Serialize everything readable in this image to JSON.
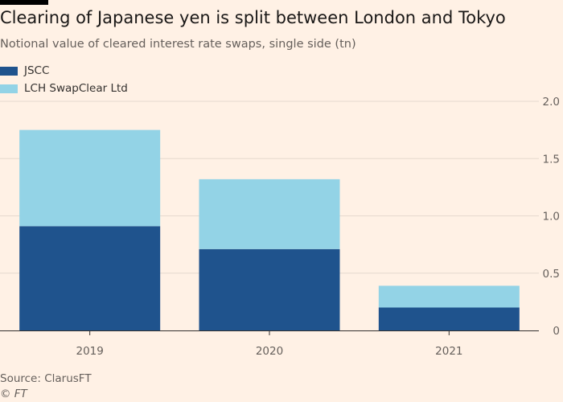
{
  "header": {
    "title": "Clearing of Japanese yen is split between London and Tokyo",
    "subtitle": "Notional value of cleared interest rate swaps, single side (tn)"
  },
  "footer": {
    "source": "Source: ClarusFT",
    "credit": "© FT"
  },
  "colors": {
    "background": "#fff1e5",
    "jscc": "#1f538d",
    "lch": "#93d3e6",
    "gridline": "#e6d9ce",
    "axis": "#33302e",
    "tick_text": "#66605c"
  },
  "chart_data": {
    "type": "bar",
    "stacked": true,
    "title": "Clearing of Japanese yen is split between London and Tokyo",
    "subtitle": "Notional value of cleared interest rate swaps, single side (tn)",
    "categories": [
      "2019",
      "2020",
      "2021"
    ],
    "series": [
      {
        "name": "JSCC",
        "values": [
          0.91,
          0.71,
          0.2
        ],
        "color": "#1f538d"
      },
      {
        "name": "LCH SwapClear Ltd",
        "values": [
          0.84,
          0.61,
          0.19
        ],
        "color": "#93d3e6"
      }
    ],
    "y_ticks": [
      "0",
      "0.5",
      "1.0",
      "1.5",
      "2.0"
    ],
    "y_tick_values": [
      0,
      0.5,
      1.0,
      1.5,
      2.0
    ],
    "ylim": [
      0,
      2.0
    ],
    "y_axis_side": "right",
    "grid": true,
    "legend_position": "top-left"
  }
}
